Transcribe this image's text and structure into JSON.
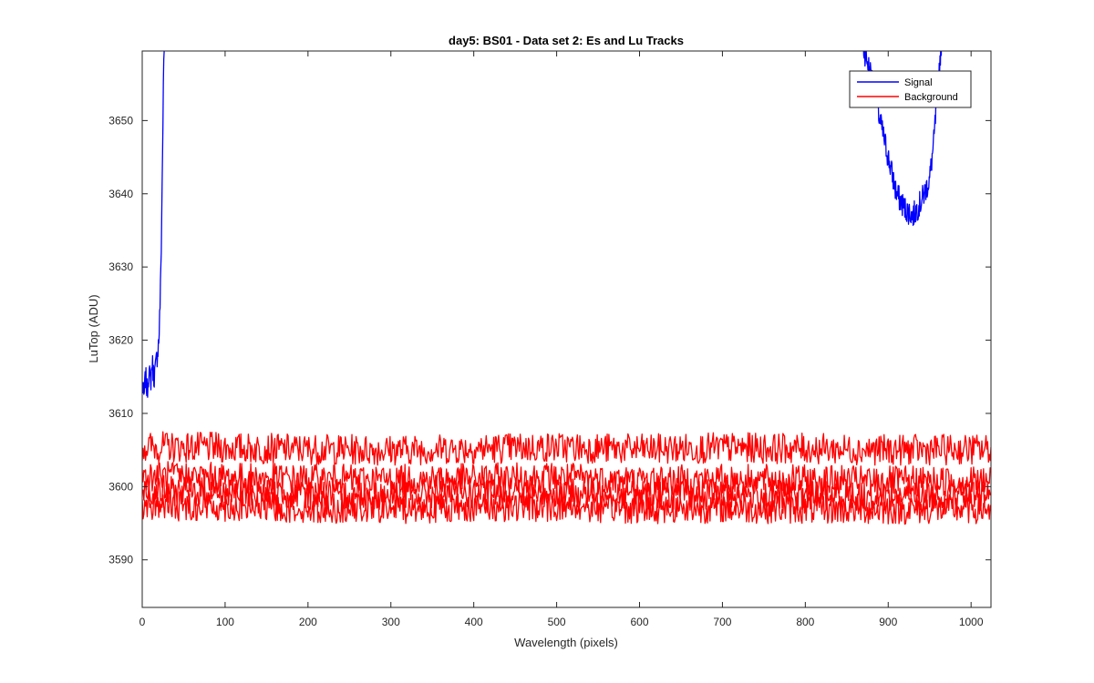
{
  "chart_data": {
    "type": "line",
    "title": "day5: BS01 - Data set 2: Es and Lu Tracks",
    "xlabel": "Wavelength (pixels)",
    "ylabel": "LuTop (ADU)",
    "xlim": [
      0,
      1024
    ],
    "ylim": [
      3583.5,
      3659.5
    ],
    "x_ticks": [
      0,
      100,
      200,
      300,
      400,
      500,
      600,
      700,
      800,
      900,
      1000
    ],
    "y_ticks": [
      3590,
      3600,
      3610,
      3620,
      3630,
      3640,
      3650
    ],
    "grid": false,
    "legend_position": "top-right",
    "legend": [
      "Signal",
      "Background"
    ],
    "series": [
      {
        "name": "Signal",
        "color": "#0000ff",
        "x": [
          0,
          2,
          4,
          6,
          8,
          10,
          12,
          14,
          16,
          18,
          20,
          21,
          22,
          23,
          24,
          25,
          26,
          27,
          28
        ],
        "y": [
          3614,
          3612,
          3615,
          3613,
          3616,
          3614,
          3617,
          3615,
          3616,
          3618,
          3620,
          3623,
          3627,
          3633,
          3641,
          3650,
          3658,
          3662,
          3666
        ]
      },
      {
        "name": "Signal",
        "color": "#0000ff",
        "x": [
          860,
          870,
          880,
          890,
          900,
          910,
          920,
          930,
          940,
          950,
          955,
          960,
          965
        ],
        "y": [
          3662,
          3660,
          3656,
          3650,
          3645,
          3640,
          3638,
          3637,
          3639,
          3642,
          3647,
          3655,
          3662
        ]
      },
      {
        "name": "Background",
        "color": "#ff0000",
        "x": [
          0,
          100,
          200,
          300,
          400,
          500,
          600,
          700,
          800,
          900,
          1024
        ],
        "y": [
          3605.5,
          3605.3,
          3605.1,
          3605.0,
          3605.2,
          3605.4,
          3605.1,
          3605.3,
          3605.2,
          3605.0,
          3605.1
        ]
      },
      {
        "name": "Background",
        "color": "#ff0000",
        "x": [
          0,
          100,
          200,
          300,
          400,
          500,
          600,
          700,
          800,
          900,
          1024
        ],
        "y": [
          3601.5,
          3601.2,
          3601.0,
          3600.9,
          3601.1,
          3601.3,
          3600.8,
          3601.0,
          3600.9,
          3600.7,
          3600.8
        ]
      },
      {
        "name": "Background",
        "color": "#ff0000",
        "x": [
          0,
          100,
          200,
          300,
          400,
          500,
          600,
          700,
          800,
          900,
          1024
        ],
        "y": [
          3599.5,
          3599.2,
          3599.0,
          3598.9,
          3599.1,
          3599.2,
          3598.9,
          3599.0,
          3598.8,
          3598.7,
          3598.8
        ]
      },
      {
        "name": "Background",
        "color": "#ff0000",
        "x": [
          0,
          100,
          200,
          300,
          400,
          500,
          600,
          700,
          800,
          900,
          1024
        ],
        "y": [
          3597.5,
          3597.3,
          3597.1,
          3597.0,
          3597.2,
          3597.3,
          3597.0,
          3597.1,
          3597.0,
          3596.9,
          3597.0
        ]
      }
    ]
  }
}
